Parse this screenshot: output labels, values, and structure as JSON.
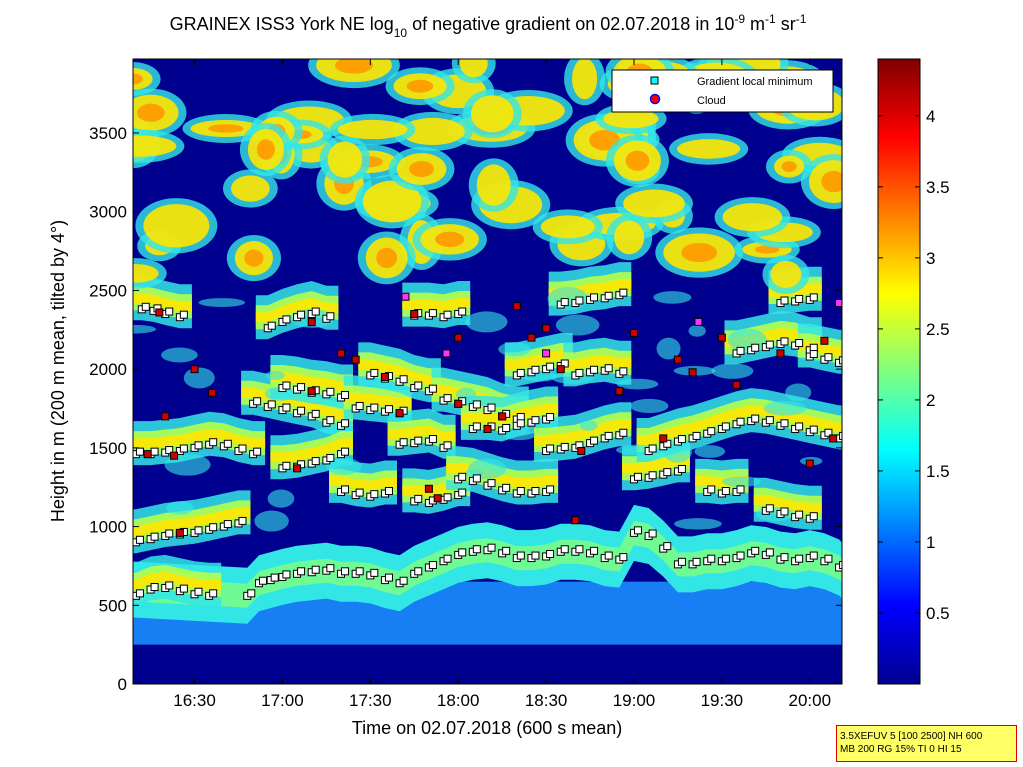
{
  "chart_data": {
    "type": "heatmap",
    "title_parts": [
      "GRAINEX ISS3 York NE log",
      "10",
      " of negative gradient on 02.07.2018 in 10",
      "-9",
      " m",
      "-1",
      " sr",
      "-1"
    ],
    "xlabel": "Time on 02.07.2018 (600 s mean)",
    "ylabel": "Height in m (200 m mean, tilted by 4°)",
    "x_ticks": [
      "16:30",
      "17:00",
      "17:30",
      "18:00",
      "18:30",
      "19:00",
      "19:30",
      "20:00"
    ],
    "x_tick_minutes": [
      990,
      1020,
      1050,
      1080,
      1110,
      1140,
      1170,
      1200
    ],
    "xlim_minutes": [
      969,
      1211
    ],
    "y_ticks": [
      "0",
      "500",
      "1000",
      "1500",
      "2000",
      "2500",
      "3000",
      "3500"
    ],
    "y_tick_values": [
      0,
      500,
      1000,
      1500,
      2000,
      2500,
      3000,
      3500
    ],
    "ylim": [
      0,
      3970
    ],
    "colorbar": {
      "ticks": [
        "0.5",
        "1",
        "1.5",
        "2",
        "2.5",
        "3",
        "3.5",
        "4"
      ],
      "tick_values": [
        0.5,
        1,
        1.5,
        2,
        2.5,
        3,
        3.5,
        4
      ],
      "range": [
        0,
        4.4
      ],
      "colormap": "jet"
    },
    "legend": {
      "placement": "top-right",
      "items": [
        {
          "label": "Gradient local minimum",
          "marker": "square",
          "color": "#00ffff"
        },
        {
          "label": "Cloud",
          "marker": "circle",
          "color": "#ff0000"
        }
      ]
    },
    "gradient_minimum_layers": [
      {
        "t": [
          970,
          975,
          980,
          985,
          990,
          995
        ],
        "z": [
          560,
          600,
          610,
          590,
          570,
          560
        ]
      },
      {
        "t": [
          970,
          975,
          980,
          985,
          990,
          995,
          1000,
          1005
        ],
        "z": [
          900,
          920,
          940,
          950,
          960,
          980,
          1000,
          1020
        ]
      },
      {
        "t": [
          970,
          975,
          980,
          985,
          990,
          995,
          1000,
          1005,
          1010
        ],
        "z": [
          1460,
          1460,
          1470,
          1480,
          1500,
          1520,
          1510,
          1480,
          1460
        ]
      },
      {
        "t": [
          972,
          976,
          980,
          985
        ],
        "z": [
          2380,
          2370,
          2350,
          2330
        ]
      },
      {
        "t": [
          1008,
          1012,
          1016,
          1020,
          1025,
          1030,
          1035,
          1040,
          1045,
          1050,
          1055,
          1060,
          1065,
          1070,
          1075,
          1080,
          1085,
          1090,
          1095,
          1100,
          1105,
          1110,
          1115,
          1120,
          1125,
          1130,
          1135,
          1140,
          1145,
          1150,
          1155,
          1160,
          1165,
          1170,
          1175,
          1180,
          1185,
          1190,
          1195,
          1200,
          1205,
          1210
        ],
        "z": [
          560,
          640,
          660,
          680,
          700,
          710,
          720,
          700,
          700,
          690,
          660,
          640,
          700,
          740,
          780,
          820,
          840,
          850,
          830,
          800,
          800,
          810,
          840,
          840,
          830,
          800,
          790,
          960,
          940,
          860,
          760,
          760,
          780,
          780,
          800,
          830,
          820,
          790,
          780,
          800,
          780,
          740
        ]
      },
      {
        "t": [
          1010,
          1015,
          1020,
          1025,
          1030,
          1035,
          1040
        ],
        "z": [
          1780,
          1760,
          1740,
          1720,
          1700,
          1660,
          1640
        ]
      },
      {
        "t": [
          1020,
          1025,
          1030,
          1035,
          1040
        ],
        "z": [
          1370,
          1380,
          1400,
          1420,
          1460
        ]
      },
      {
        "t": [
          1015,
          1020,
          1025,
          1030,
          1035
        ],
        "z": [
          2260,
          2300,
          2330,
          2350,
          2320
        ]
      },
      {
        "t": [
          1020,
          1025,
          1030,
          1035,
          1040
        ],
        "z": [
          1880,
          1870,
          1850,
          1840,
          1820
        ]
      },
      {
        "t": [
          1040,
          1045,
          1050,
          1055
        ],
        "z": [
          1220,
          1200,
          1190,
          1210
        ]
      },
      {
        "t": [
          1045,
          1050,
          1055,
          1060
        ],
        "z": [
          1750,
          1740,
          1730,
          1720
        ]
      },
      {
        "t": [
          1050,
          1055,
          1060,
          1065,
          1070
        ],
        "z": [
          1960,
          1940,
          1920,
          1880,
          1860
        ]
      },
      {
        "t": [
          1060,
          1065,
          1070,
          1075
        ],
        "z": [
          1520,
          1530,
          1540,
          1500
        ]
      },
      {
        "t": [
          1065,
          1070,
          1075,
          1080
        ],
        "z": [
          1160,
          1150,
          1170,
          1200
        ]
      },
      {
        "t": [
          1065,
          1070,
          1075,
          1080
        ],
        "z": [
          2340,
          2340,
          2330,
          2350
        ]
      },
      {
        "t": [
          1075,
          1080,
          1085,
          1090,
          1095,
          1100
        ],
        "z": [
          1800,
          1780,
          1760,
          1740,
          1700,
          1680
        ]
      },
      {
        "t": [
          1080,
          1085,
          1090,
          1095,
          1100,
          1105,
          1110
        ],
        "z": [
          1300,
          1290,
          1260,
          1230,
          1210,
          1210,
          1220
        ]
      },
      {
        "t": [
          1085,
          1090,
          1095,
          1100,
          1105,
          1110
        ],
        "z": [
          1620,
          1620,
          1610,
          1640,
          1660,
          1680
        ]
      },
      {
        "t": [
          1100,
          1105,
          1110,
          1115
        ],
        "z": [
          1960,
          1980,
          2000,
          2020
        ]
      },
      {
        "t": [
          1110,
          1115,
          1120,
          1125,
          1130,
          1135
        ],
        "z": [
          1480,
          1490,
          1500,
          1530,
          1560,
          1580
        ]
      },
      {
        "t": [
          1115,
          1120,
          1125,
          1130,
          1135
        ],
        "z": [
          2410,
          2420,
          2440,
          2450,
          2470
        ]
      },
      {
        "t": [
          1120,
          1125,
          1130,
          1135
        ],
        "z": [
          1960,
          1980,
          1990,
          1970
        ]
      },
      {
        "t": [
          1140,
          1145,
          1150,
          1155
        ],
        "z": [
          1300,
          1310,
          1330,
          1350
        ]
      },
      {
        "t": [
          1145,
          1150,
          1155,
          1160,
          1165,
          1170,
          1175,
          1180,
          1185,
          1190,
          1195,
          1200,
          1205,
          1210
        ],
        "z": [
          1480,
          1510,
          1540,
          1560,
          1590,
          1620,
          1650,
          1670,
          1660,
          1640,
          1620,
          1600,
          1580,
          1560
        ]
      },
      {
        "t": [
          1165,
          1170,
          1175
        ],
        "z": [
          1220,
          1210,
          1220
        ]
      },
      {
        "t": [
          1175,
          1180,
          1185,
          1190,
          1195,
          1200
        ],
        "z": [
          2100,
          2120,
          2140,
          2160,
          2150,
          2120
        ]
      },
      {
        "t": [
          1190,
          1195,
          1200
        ],
        "z": [
          2420,
          2430,
          2440
        ]
      },
      {
        "t": [
          1185,
          1190,
          1195,
          1200
        ],
        "z": [
          1100,
          1080,
          1060,
          1050
        ]
      },
      {
        "t": [
          1200,
          1205,
          1210
        ],
        "z": [
          2080,
          2060,
          2040
        ]
      }
    ],
    "cloud_points": [
      {
        "t": 974,
        "z": 1460
      },
      {
        "t": 980,
        "z": 1700
      },
      {
        "t": 978,
        "z": 2360
      },
      {
        "t": 983,
        "z": 1450
      },
      {
        "t": 990,
        "z": 2000
      },
      {
        "t": 996,
        "z": 1850
      },
      {
        "t": 985,
        "z": 960
      },
      {
        "t": 1025,
        "z": 1370
      },
      {
        "t": 1030,
        "z": 1860
      },
      {
        "t": 1030,
        "z": 2300
      },
      {
        "t": 1040,
        "z": 2100
      },
      {
        "t": 1045,
        "z": 2060
      },
      {
        "t": 1055,
        "z": 1950
      },
      {
        "t": 1060,
        "z": 1720
      },
      {
        "t": 1065,
        "z": 2350
      },
      {
        "t": 1070,
        "z": 1240
      },
      {
        "t": 1073,
        "z": 1180
      },
      {
        "t": 1080,
        "z": 2200
      },
      {
        "t": 1080,
        "z": 1780
      },
      {
        "t": 1090,
        "z": 1620
      },
      {
        "t": 1095,
        "z": 1700
      },
      {
        "t": 1100,
        "z": 2400
      },
      {
        "t": 1105,
        "z": 2200
      },
      {
        "t": 1110,
        "z": 2260
      },
      {
        "t": 1115,
        "z": 2000
      },
      {
        "t": 1120,
        "z": 1040
      },
      {
        "t": 1122,
        "z": 1480
      },
      {
        "t": 1135,
        "z": 1860
      },
      {
        "t": 1140,
        "z": 2230
      },
      {
        "t": 1150,
        "z": 1560
      },
      {
        "t": 1155,
        "z": 2060
      },
      {
        "t": 1160,
        "z": 1980
      },
      {
        "t": 1170,
        "z": 2200
      },
      {
        "t": 1175,
        "z": 1900
      },
      {
        "t": 1190,
        "z": 2100
      },
      {
        "t": 1200,
        "z": 1400
      },
      {
        "t": 1208,
        "z": 1560
      },
      {
        "t": 1205,
        "z": 2180
      }
    ],
    "high_cloud_markers": [
      {
        "t": 1110,
        "z": 2100
      },
      {
        "t": 1162,
        "z": 2300
      },
      {
        "t": 1210,
        "z": 2420
      },
      {
        "t": 1062,
        "z": 2460
      },
      {
        "t": 1076,
        "z": 2100
      }
    ]
  },
  "info_box": {
    "line1": "3.5XEFUV 5 [100 2500] NH 600",
    "line2": "MB 200 RG 15% TI 0 HI 15"
  }
}
